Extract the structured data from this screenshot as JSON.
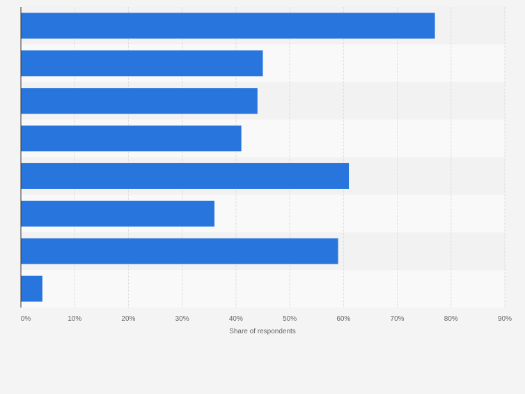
{
  "chart_data": {
    "type": "bar",
    "orientation": "horizontal",
    "categories": [
      "",
      "",
      "",
      "",
      "",
      "",
      "",
      ""
    ],
    "values": [
      77,
      45,
      44,
      41,
      61,
      36,
      59,
      4
    ],
    "xlabel": "Share of respondents",
    "ylabel": "",
    "xlim": [
      0,
      90
    ],
    "x_ticks": [
      "0%",
      "10%",
      "20%",
      "30%",
      "40%",
      "50%",
      "60%",
      "70%",
      "80%",
      "90%"
    ],
    "grid": true,
    "bar_color": "#2775dd",
    "band_colors": [
      "#f2f2f2",
      "#f9f9f9"
    ]
  }
}
